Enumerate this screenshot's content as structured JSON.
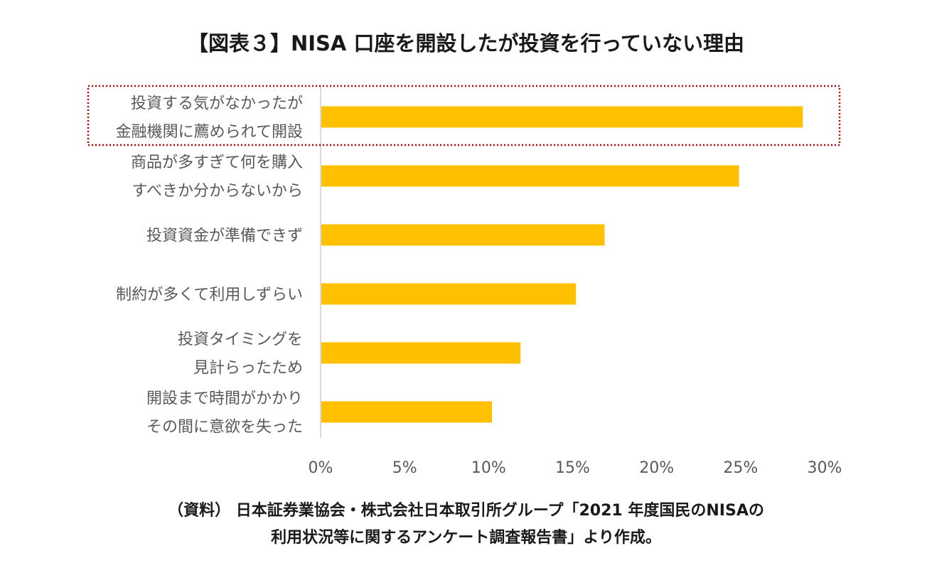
{
  "title": "【図表３】NISA 口座を開設したが投資を行っていない理由",
  "source": {
    "line1": "（資料） 日本証券業協会・株式会社日本取引所グループ「2021 年度国民のNISAの",
    "line2": "利用状況等に関するアンケート調査報告書」より作成。"
  },
  "colors": {
    "bar": "#FFC000",
    "highlight": "#C00000",
    "axis_text": "#595959",
    "axis_line": "#D9D9D9"
  },
  "chart_data": {
    "type": "bar",
    "orientation": "horizontal",
    "categories": [
      [
        "投資する気がなかったが",
        "金融機関に薦められて開設"
      ],
      [
        "商品が多すぎて何を購入",
        "すべきか分からないから"
      ],
      [
        "投資資金が準備できず"
      ],
      [
        "制約が多くて利用しずらい"
      ],
      [
        "投資タイミングを",
        "見計らったため"
      ],
      [
        "開設まで時間がかかり",
        "その間に意欲を失った"
      ]
    ],
    "values": [
      28.7,
      24.9,
      16.9,
      15.2,
      11.9,
      10.2
    ],
    "xlim": [
      0,
      30
    ],
    "xticks": [
      0,
      5,
      10,
      15,
      20,
      25,
      30
    ],
    "xtick_labels": [
      "0%",
      "5%",
      "10%",
      "15%",
      "20%",
      "25%",
      "30%"
    ],
    "highlighted_index": 0,
    "grid": false
  }
}
